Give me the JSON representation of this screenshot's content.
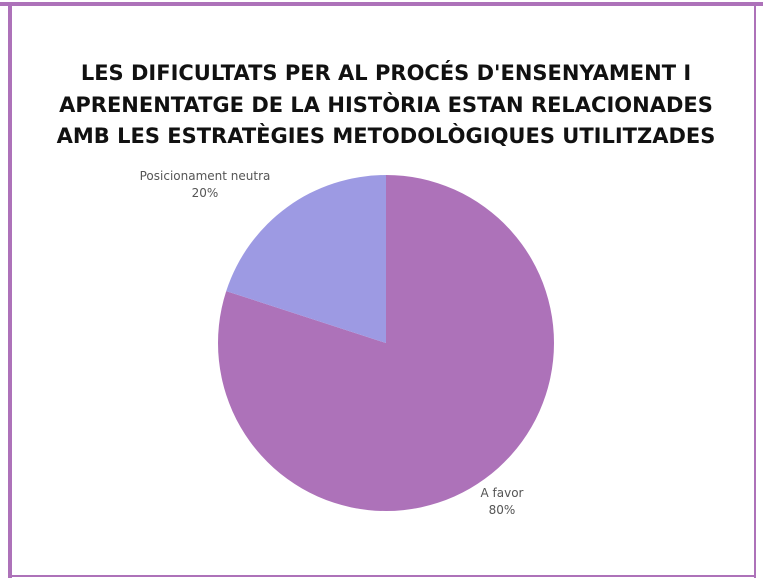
{
  "chart_data": {
    "type": "pie",
    "title": [
      "LES DIFICULTATS PER AL PROCÉS D'ENSENYAMENT I",
      "APRENENTATGE DE LA HISTÒRIA ESTAN RELACIONADES",
      "AMB LES ESTRATÈGIES METODOLÒGIQUES UTILITZADES"
    ],
    "categories": [
      "A favor",
      "Posicionament neutra"
    ],
    "values": [
      80,
      20
    ],
    "value_labels": [
      "80%",
      "20%"
    ],
    "colors": [
      "#ad72b9",
      "#9d9ae3"
    ]
  }
}
